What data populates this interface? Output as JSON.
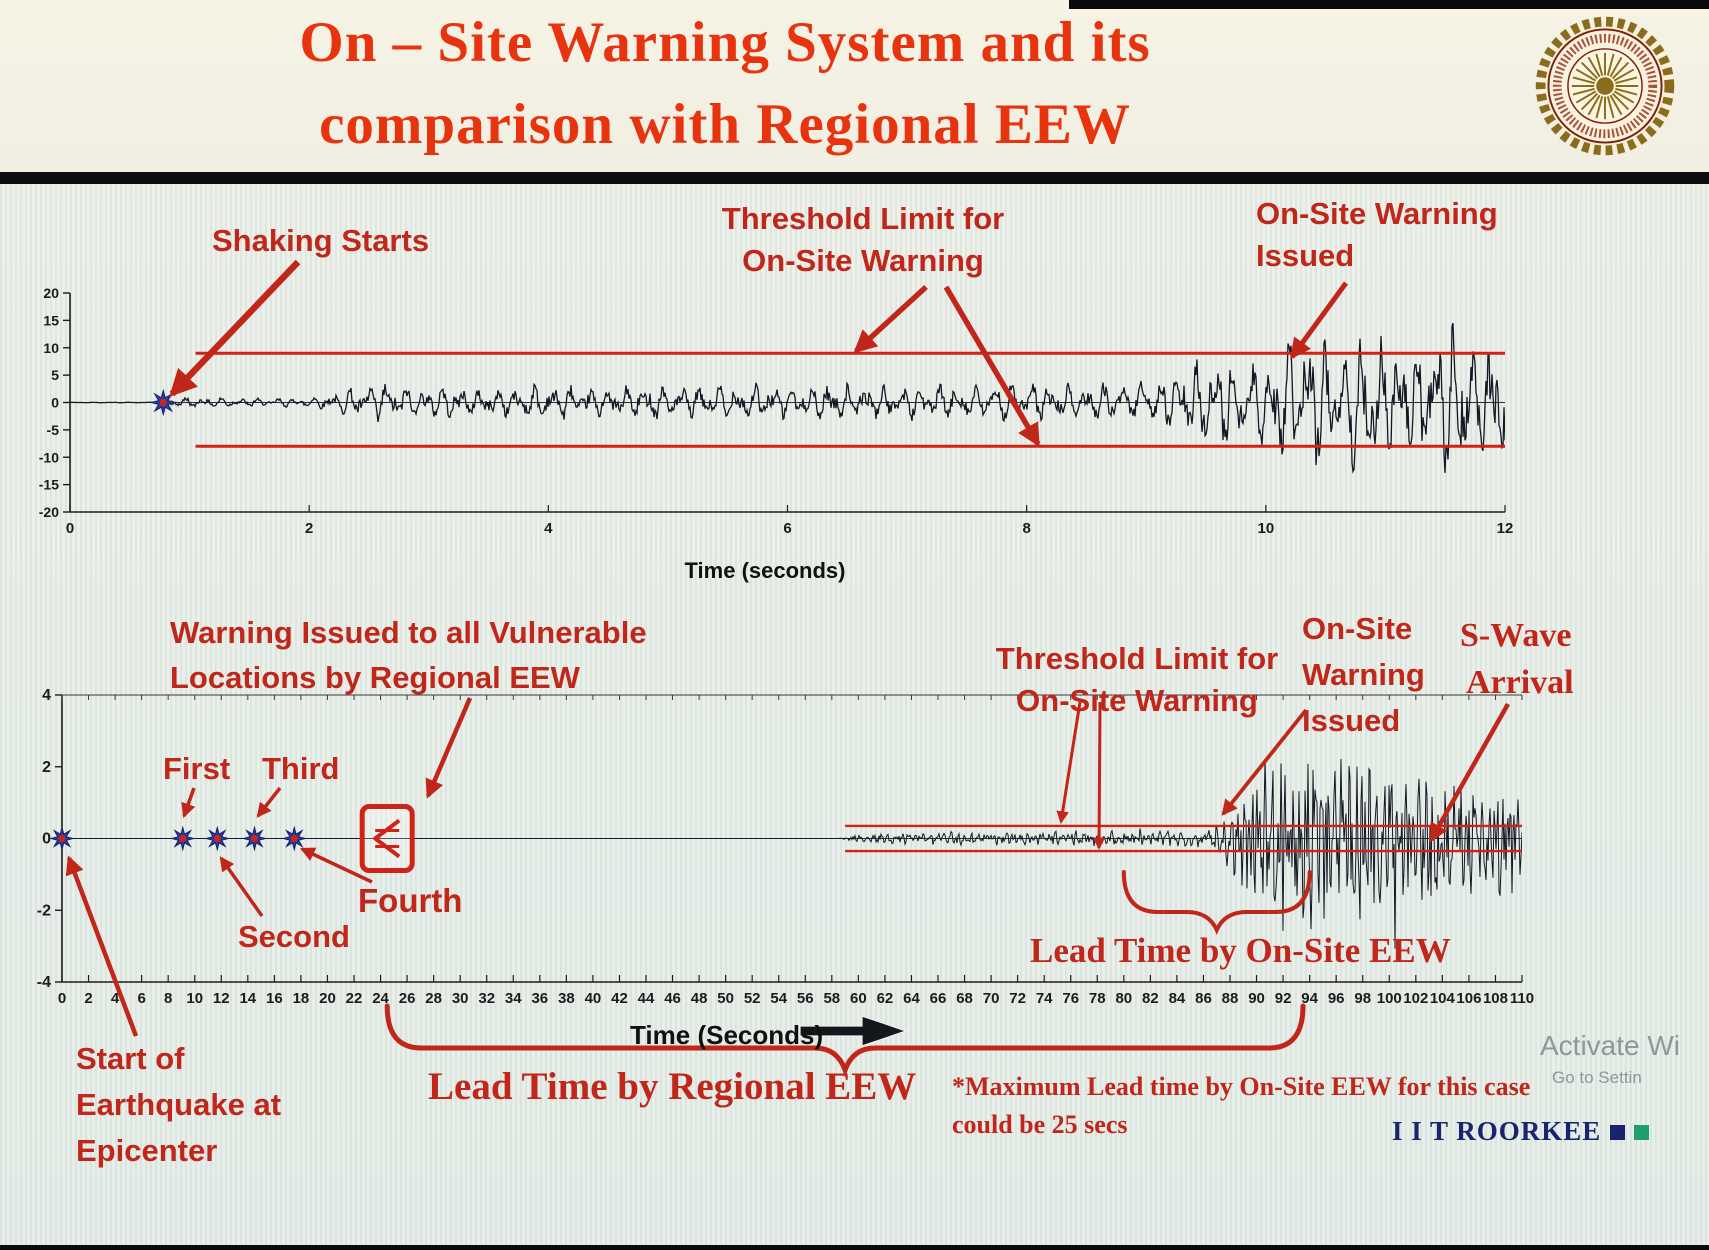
{
  "header": {
    "title_line1": "On – Site Warning System and its",
    "title_line2": "comparison with Regional EEW",
    "logo_label": "IIT Roorkee seal"
  },
  "colors": {
    "title_red": "#e8330f",
    "annotation_red": "#c1261a",
    "threshold_red": "#cf2318",
    "waveform": "#141824",
    "star_blue": "#2c3e9c",
    "star_center": "#cf2318",
    "brand_navy": "#18246e",
    "brand_teal": "#1e9e71",
    "watermark_gray": "#7d8a8e"
  },
  "annotations": {
    "shaking_starts": "Shaking Starts",
    "threshold1_l1": "Threshold Limit for",
    "threshold1_l2": "On-Site Warning",
    "onsite1_l1": "On-Site Warning",
    "onsite1_l2": "Issued",
    "regional_l1": "Warning Issued to all Vulnerable",
    "regional_l2": "Locations by Regional EEW",
    "p1": "First",
    "p2": "Second",
    "p3": "Third",
    "p4": "Fourth",
    "threshold2_l1": "Threshold Limit for",
    "threshold2_l2": "On-Site Warning",
    "onsite2_l1": "On-Site",
    "onsite2_l2": "Warning",
    "onsite2_l3": "Issued",
    "swave_l1": "S-Wave",
    "swave_l2": "Arrival",
    "lead_onsite": "Lead Time by On-Site EEW",
    "lead_regional": "Lead Time by Regional EEW",
    "max_note_l1": "*Maximum Lead time by On-Site EEW for this case",
    "max_note_l2": "could be 25 secs",
    "start_l1": "Start of",
    "start_l2": "Earthquake at",
    "start_l3": "Epicenter"
  },
  "footer": {
    "brand": "I I T ROORKEE",
    "watermark_l1": "Activate Wi",
    "watermark_l2": "Go to Settin"
  },
  "chart_data": [
    {
      "id": "onsite-record-chart",
      "type": "line",
      "title": "",
      "xlabel": "Time (seconds)",
      "ylabel": "",
      "xlim": [
        0,
        12
      ],
      "xticks": [
        0,
        2,
        4,
        6,
        8,
        10,
        12
      ],
      "ylim": [
        -20,
        20
      ],
      "yticks": [
        20,
        15,
        10,
        5,
        0,
        -5,
        -10,
        -15,
        -20
      ],
      "threshold": {
        "upper": 9,
        "lower": -8,
        "from": 1.05,
        "to": 12
      },
      "events": [
        {
          "t": 0.78,
          "name": "shaking-starts-marker"
        }
      ],
      "warning_issued_t": 9.4,
      "envelope": [
        [
          0,
          0.05
        ],
        [
          0.7,
          0.08
        ],
        [
          0.8,
          0.9
        ],
        [
          1.0,
          1.2
        ],
        [
          1.4,
          1.0
        ],
        [
          1.8,
          0.9
        ],
        [
          2.1,
          1.4
        ],
        [
          2.35,
          3.2
        ],
        [
          2.6,
          4.8
        ],
        [
          2.9,
          3.2
        ],
        [
          3.2,
          3.8
        ],
        [
          3.6,
          3.0
        ],
        [
          4.0,
          4.2
        ],
        [
          4.4,
          3.2
        ],
        [
          4.8,
          4.0
        ],
        [
          5.2,
          3.4
        ],
        [
          5.6,
          4.4
        ],
        [
          6.0,
          3.6
        ],
        [
          6.4,
          4.2
        ],
        [
          6.8,
          3.4
        ],
        [
          7.2,
          4.0
        ],
        [
          7.6,
          3.6
        ],
        [
          8.0,
          4.4
        ],
        [
          8.4,
          3.8
        ],
        [
          8.8,
          4.6
        ],
        [
          9.1,
          5.5
        ],
        [
          9.35,
          8.5
        ],
        [
          9.6,
          11
        ],
        [
          9.85,
          8
        ],
        [
          10.1,
          14
        ],
        [
          10.35,
          17
        ],
        [
          10.6,
          11
        ],
        [
          10.85,
          16
        ],
        [
          11.1,
          12
        ],
        [
          11.35,
          15
        ],
        [
          11.6,
          17
        ],
        [
          11.85,
          13
        ],
        [
          12,
          14
        ]
      ],
      "texture": {
        "f1": 6.5,
        "f2": 10.3,
        "noise": 0.45
      }
    },
    {
      "id": "regional-record-chart",
      "type": "line",
      "title": "",
      "xlabel": "Time (Seconds)",
      "ylabel": "",
      "xlim": [
        0,
        110
      ],
      "xticks": [
        0,
        2,
        4,
        6,
        8,
        10,
        12,
        14,
        16,
        18,
        20,
        22,
        24,
        26,
        28,
        30,
        32,
        34,
        36,
        38,
        40,
        42,
        44,
        46,
        48,
        50,
        52,
        54,
        56,
        58,
        60,
        62,
        64,
        66,
        68,
        70,
        72,
        74,
        76,
        78,
        80,
        82,
        84,
        86,
        88,
        90,
        92,
        94,
        96,
        98,
        100,
        102,
        104,
        106,
        108,
        110
      ],
      "ylim": [
        -4,
        4
      ],
      "yticks": [
        4,
        2,
        0,
        -2,
        -4
      ],
      "threshold": {
        "upper": 0.35,
        "lower": -0.35,
        "from": 59,
        "to": 110
      },
      "events": [
        {
          "t": 0,
          "name": "epicenter-marker"
        },
        {
          "t": 9.1,
          "name": "first-pwave-marker"
        },
        {
          "t": 11.7,
          "name": "second-pwave-marker"
        },
        {
          "t": 14.5,
          "name": "third-pwave-marker"
        },
        {
          "t": 17.5,
          "name": "fourth-pwave-marker"
        }
      ],
      "warning_icon_t": 24.5,
      "lead_regional": {
        "from": 24.5,
        "to": 93.5
      },
      "lead_onsite": {
        "from": 80,
        "to": 94
      },
      "s_wave_arrival_t": 93.5,
      "envelope": [
        [
          0,
          0
        ],
        [
          58.5,
          0
        ],
        [
          59,
          0.06
        ],
        [
          60,
          0.12
        ],
        [
          62,
          0.16
        ],
        [
          64,
          0.13
        ],
        [
          66,
          0.18
        ],
        [
          68,
          0.22
        ],
        [
          70,
          0.16
        ],
        [
          72,
          0.2
        ],
        [
          74,
          0.16
        ],
        [
          76,
          0.2
        ],
        [
          78,
          0.18
        ],
        [
          80,
          0.22
        ],
        [
          82,
          0.25
        ],
        [
          84,
          0.22
        ],
        [
          86,
          0.3
        ],
        [
          87.5,
          0.5
        ],
        [
          88.5,
          1.2
        ],
        [
          89.5,
          2.6
        ],
        [
          90.5,
          1.8
        ],
        [
          91.5,
          2.9
        ],
        [
          92.5,
          2.2
        ],
        [
          93.5,
          3.1
        ],
        [
          94.5,
          2.4
        ],
        [
          95.5,
          2.9
        ],
        [
          96.5,
          2.1
        ],
        [
          97.5,
          2.7
        ],
        [
          98.5,
          2.0
        ],
        [
          99.5,
          2.5
        ],
        [
          100.5,
          2.8
        ],
        [
          101.5,
          2.0
        ],
        [
          102.5,
          2.4
        ],
        [
          103.5,
          1.8
        ],
        [
          104.5,
          2.2
        ],
        [
          105.5,
          1.7
        ],
        [
          106.5,
          2.1
        ],
        [
          107.5,
          1.6
        ],
        [
          108.5,
          1.9
        ],
        [
          110,
          1.5
        ]
      ],
      "texture": {
        "f1": 1.9,
        "f2": 3.3,
        "noise": 0.85
      }
    }
  ]
}
